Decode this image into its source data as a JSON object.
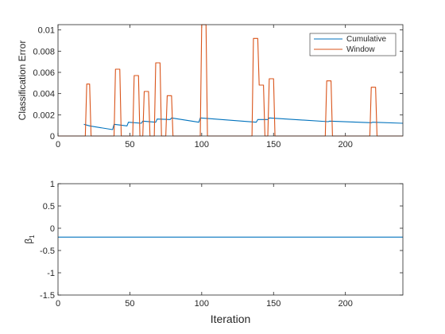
{
  "chart_data": [
    {
      "type": "line",
      "title": "",
      "xlabel": "",
      "ylabel": "Classification Error",
      "xlim": [
        0,
        240
      ],
      "ylim": [
        0,
        0.0105
      ],
      "x_ticks": [
        0,
        50,
        100,
        150,
        200
      ],
      "y_ticks": [
        0,
        0.002,
        0.004,
        0.006,
        0.008,
        0.01
      ],
      "y_tick_labels": [
        "0",
        "0.002",
        "0.004",
        "0.006",
        "0.008",
        "0.01"
      ],
      "legend_position": "top-right",
      "grid": false,
      "series": [
        {
          "name": "Cumulative",
          "color": "#0072BD",
          "x": [
            18,
            22,
            38,
            39,
            48,
            49,
            58,
            59,
            68,
            69,
            78,
            79,
            98,
            99,
            138,
            139,
            146,
            147,
            188,
            189,
            218,
            219,
            240
          ],
          "y": [
            0.0011,
            0.00095,
            0.0006,
            0.0011,
            0.00095,
            0.0013,
            0.0012,
            0.0014,
            0.0013,
            0.0016,
            0.00155,
            0.0017,
            0.0013,
            0.0017,
            0.0013,
            0.00155,
            0.00155,
            0.0017,
            0.00135,
            0.0014,
            0.00125,
            0.0013,
            0.0012
          ]
        },
        {
          "name": "Window",
          "color": "#D95319",
          "x": [
            0,
            19,
            20,
            22,
            23,
            39,
            40,
            43,
            44,
            52,
            53,
            56,
            57,
            59,
            60,
            63,
            64,
            67,
            68,
            71,
            72,
            75,
            76,
            79,
            80,
            99,
            100,
            103,
            104,
            135,
            136,
            139,
            140,
            143,
            144,
            146,
            147,
            150,
            151,
            186,
            187,
            190,
            191,
            217,
            218,
            221,
            222,
            240
          ],
          "y": [
            0,
            0,
            0.0049,
            0.0049,
            0,
            0,
            0.0063,
            0.0063,
            0,
            0,
            0.0057,
            0.0057,
            0,
            0,
            0.0042,
            0.0042,
            0,
            0,
            0.0069,
            0.0069,
            0,
            0,
            0.0038,
            0.0038,
            0,
            0,
            0.0105,
            0.0105,
            0,
            0,
            0.0092,
            0.0092,
            0.0048,
            0.0048,
            0,
            0,
            0.0054,
            0.0054,
            0,
            0,
            0.0052,
            0.0052,
            0,
            0,
            0.0046,
            0.0046,
            0,
            0
          ]
        }
      ]
    },
    {
      "type": "line",
      "title": "",
      "xlabel": "Iteration",
      "ylabel": "β1",
      "ylabel_main": "β",
      "ylabel_sub": "1",
      "xlim": [
        0,
        240
      ],
      "ylim": [
        -1.5,
        1
      ],
      "x_ticks": [
        0,
        50,
        100,
        150,
        200
      ],
      "y_ticks": [
        -1.5,
        -1,
        -0.5,
        0,
        0.5,
        1
      ],
      "y_tick_labels": [
        "-1.5",
        "-1",
        "-0.5",
        "0",
        "0.5",
        "1"
      ],
      "grid": false,
      "series": [
        {
          "name": "",
          "color": "#0072BD",
          "x": [
            0,
            240
          ],
          "y": [
            -0.2,
            -0.2
          ]
        }
      ]
    }
  ]
}
